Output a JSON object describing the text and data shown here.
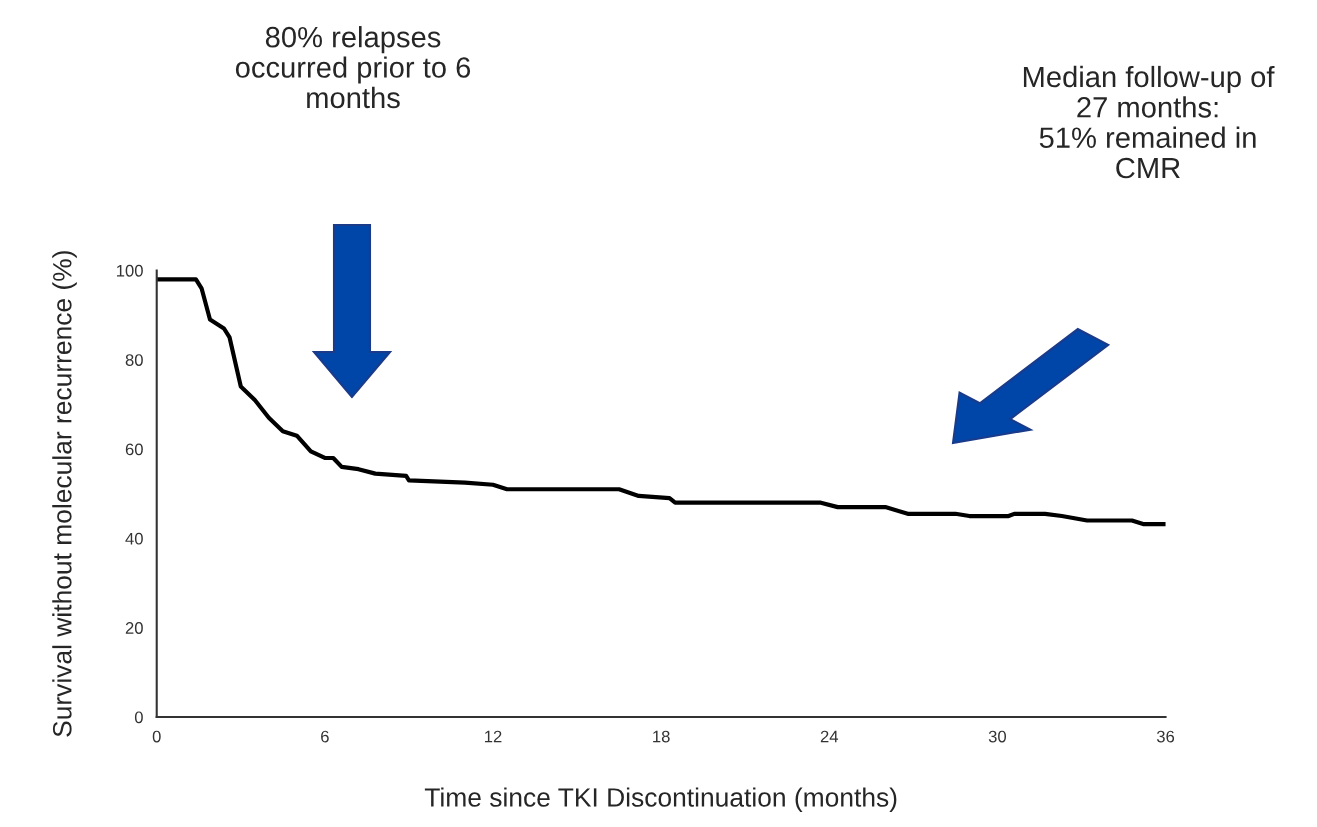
{
  "chart_data": {
    "type": "line",
    "xlabel": "Time since TKI Discontinuation (months)",
    "ylabel": "Survival without molecular recurrence (%)",
    "annotations": [
      "80% relapses\noccurred prior to 6\nmonths",
      "Median follow-up of\n27 months:\n51% remained in\nCMR"
    ],
    "series": [
      {
        "color": "#000000",
        "x": [
          0,
          1.4,
          1.6,
          1.9,
          2.4,
          2.6,
          3,
          3.5,
          4,
          4.5,
          5,
          5.5,
          6,
          6.3,
          6.6,
          7.2,
          7.8,
          8.9,
          9,
          11,
          12,
          12.5,
          16.5,
          17.2,
          18.3,
          18.5,
          20,
          23.7,
          24.3,
          26,
          26.8,
          28.5,
          29,
          30.4,
          30.6,
          31.7,
          32.3,
          33.2,
          34.8,
          35.2,
          36
        ],
        "values": [
          98,
          98,
          96,
          89,
          87,
          85,
          74,
          71,
          67,
          64,
          63,
          59.5,
          58,
          58,
          56,
          55.5,
          54.5,
          54,
          53,
          52.5,
          52,
          51,
          51,
          49.5,
          49,
          48,
          48,
          48,
          47,
          47,
          45.5,
          45.5,
          45,
          45,
          45.5,
          45.5,
          45,
          44,
          44,
          43.2,
          43.2
        ]
      }
    ],
    "xlim": [
      0,
      36
    ],
    "xticks": [
      0,
      6,
      12,
      18,
      24,
      30,
      36
    ],
    "ylim": [
      0,
      100
    ],
    "yticks": [
      0,
      20,
      40,
      60,
      80,
      100
    ],
    "grid": false,
    "marker": "none",
    "line_style": "solid"
  }
}
